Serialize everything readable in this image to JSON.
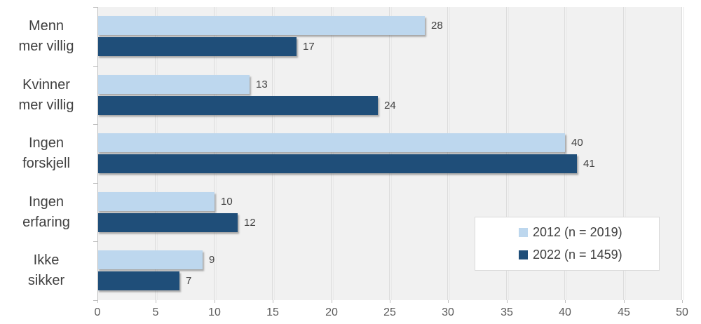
{
  "chart_data": {
    "type": "bar",
    "orientation": "horizontal",
    "title": "",
    "xlabel": "",
    "ylabel": "",
    "categories": [
      "Menn mer villig",
      "Kvinner mer villig",
      "Ingen forskjell",
      "Ingen erfaring",
      "Ikke sikker"
    ],
    "category_lines": [
      [
        "Menn",
        "mer villig"
      ],
      [
        "Kvinner",
        "mer villig"
      ],
      [
        "Ingen",
        "forskjell"
      ],
      [
        "Ingen",
        "erfaring"
      ],
      [
        "Ikke",
        "sikker"
      ]
    ],
    "series": [
      {
        "name": "2012 (n = 2019)",
        "color": "#BDD7EE",
        "values": [
          28,
          13,
          40,
          10,
          9
        ]
      },
      {
        "name": "2022 (n = 1459)",
        "color": "#1F4E79",
        "values": [
          17,
          24,
          41,
          12,
          7
        ]
      }
    ],
    "xlim": [
      0,
      50
    ],
    "xticks": [
      0,
      5,
      10,
      15,
      20,
      25,
      30,
      35,
      40,
      45,
      50
    ],
    "grid": true,
    "data_labels": true,
    "legend_position": "inside-bottom-right"
  },
  "colors": {
    "plot_bg": "#F1F1F1",
    "gridline": "#DCDCDC",
    "axis": "#BFBFBF",
    "category_label": "#404040",
    "tick_label": "#595959",
    "data_label": "#404040",
    "legend_bg": "#FFFFFF",
    "legend_border": "#D9D9D9",
    "legend_text": "#404040"
  }
}
